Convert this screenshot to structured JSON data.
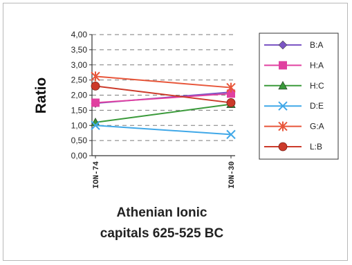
{
  "chart_data": {
    "type": "line",
    "title": "",
    "xlabel": "Athenian Ionic capitals 625-525 BC",
    "xlabel_lines": [
      "Athenian Ionic",
      "capitals 625-525 BC"
    ],
    "ylabel": "Ratio",
    "categories": [
      "ION-74",
      "ION-30"
    ],
    "ylim": [
      0,
      4
    ],
    "yticks": [
      "0,00",
      "0,50",
      "1,00",
      "1,50",
      "2,00",
      "2,50",
      "3,00",
      "3,50",
      "4,00"
    ],
    "grid": "horizontal dashed",
    "legend_position": "right",
    "series": [
      {
        "name": "B:A",
        "values": [
          1.73,
          2.1
        ],
        "color": "#7b55c4",
        "marker": "diamond"
      },
      {
        "name": "H:A",
        "values": [
          1.75,
          2.05
        ],
        "color": "#e040a0",
        "marker": "square"
      },
      {
        "name": "H:C",
        "values": [
          1.1,
          1.7
        ],
        "color": "#3a9a3a",
        "marker": "triangle"
      },
      {
        "name": "D:E",
        "values": [
          1.0,
          0.7
        ],
        "color": "#40a8e8",
        "marker": "x"
      },
      {
        "name": "G:A",
        "values": [
          2.62,
          2.25
        ],
        "color": "#e8563a",
        "marker": "star"
      },
      {
        "name": "L:B",
        "values": [
          2.3,
          1.75
        ],
        "color": "#cc3a2a",
        "marker": "circle"
      }
    ]
  }
}
